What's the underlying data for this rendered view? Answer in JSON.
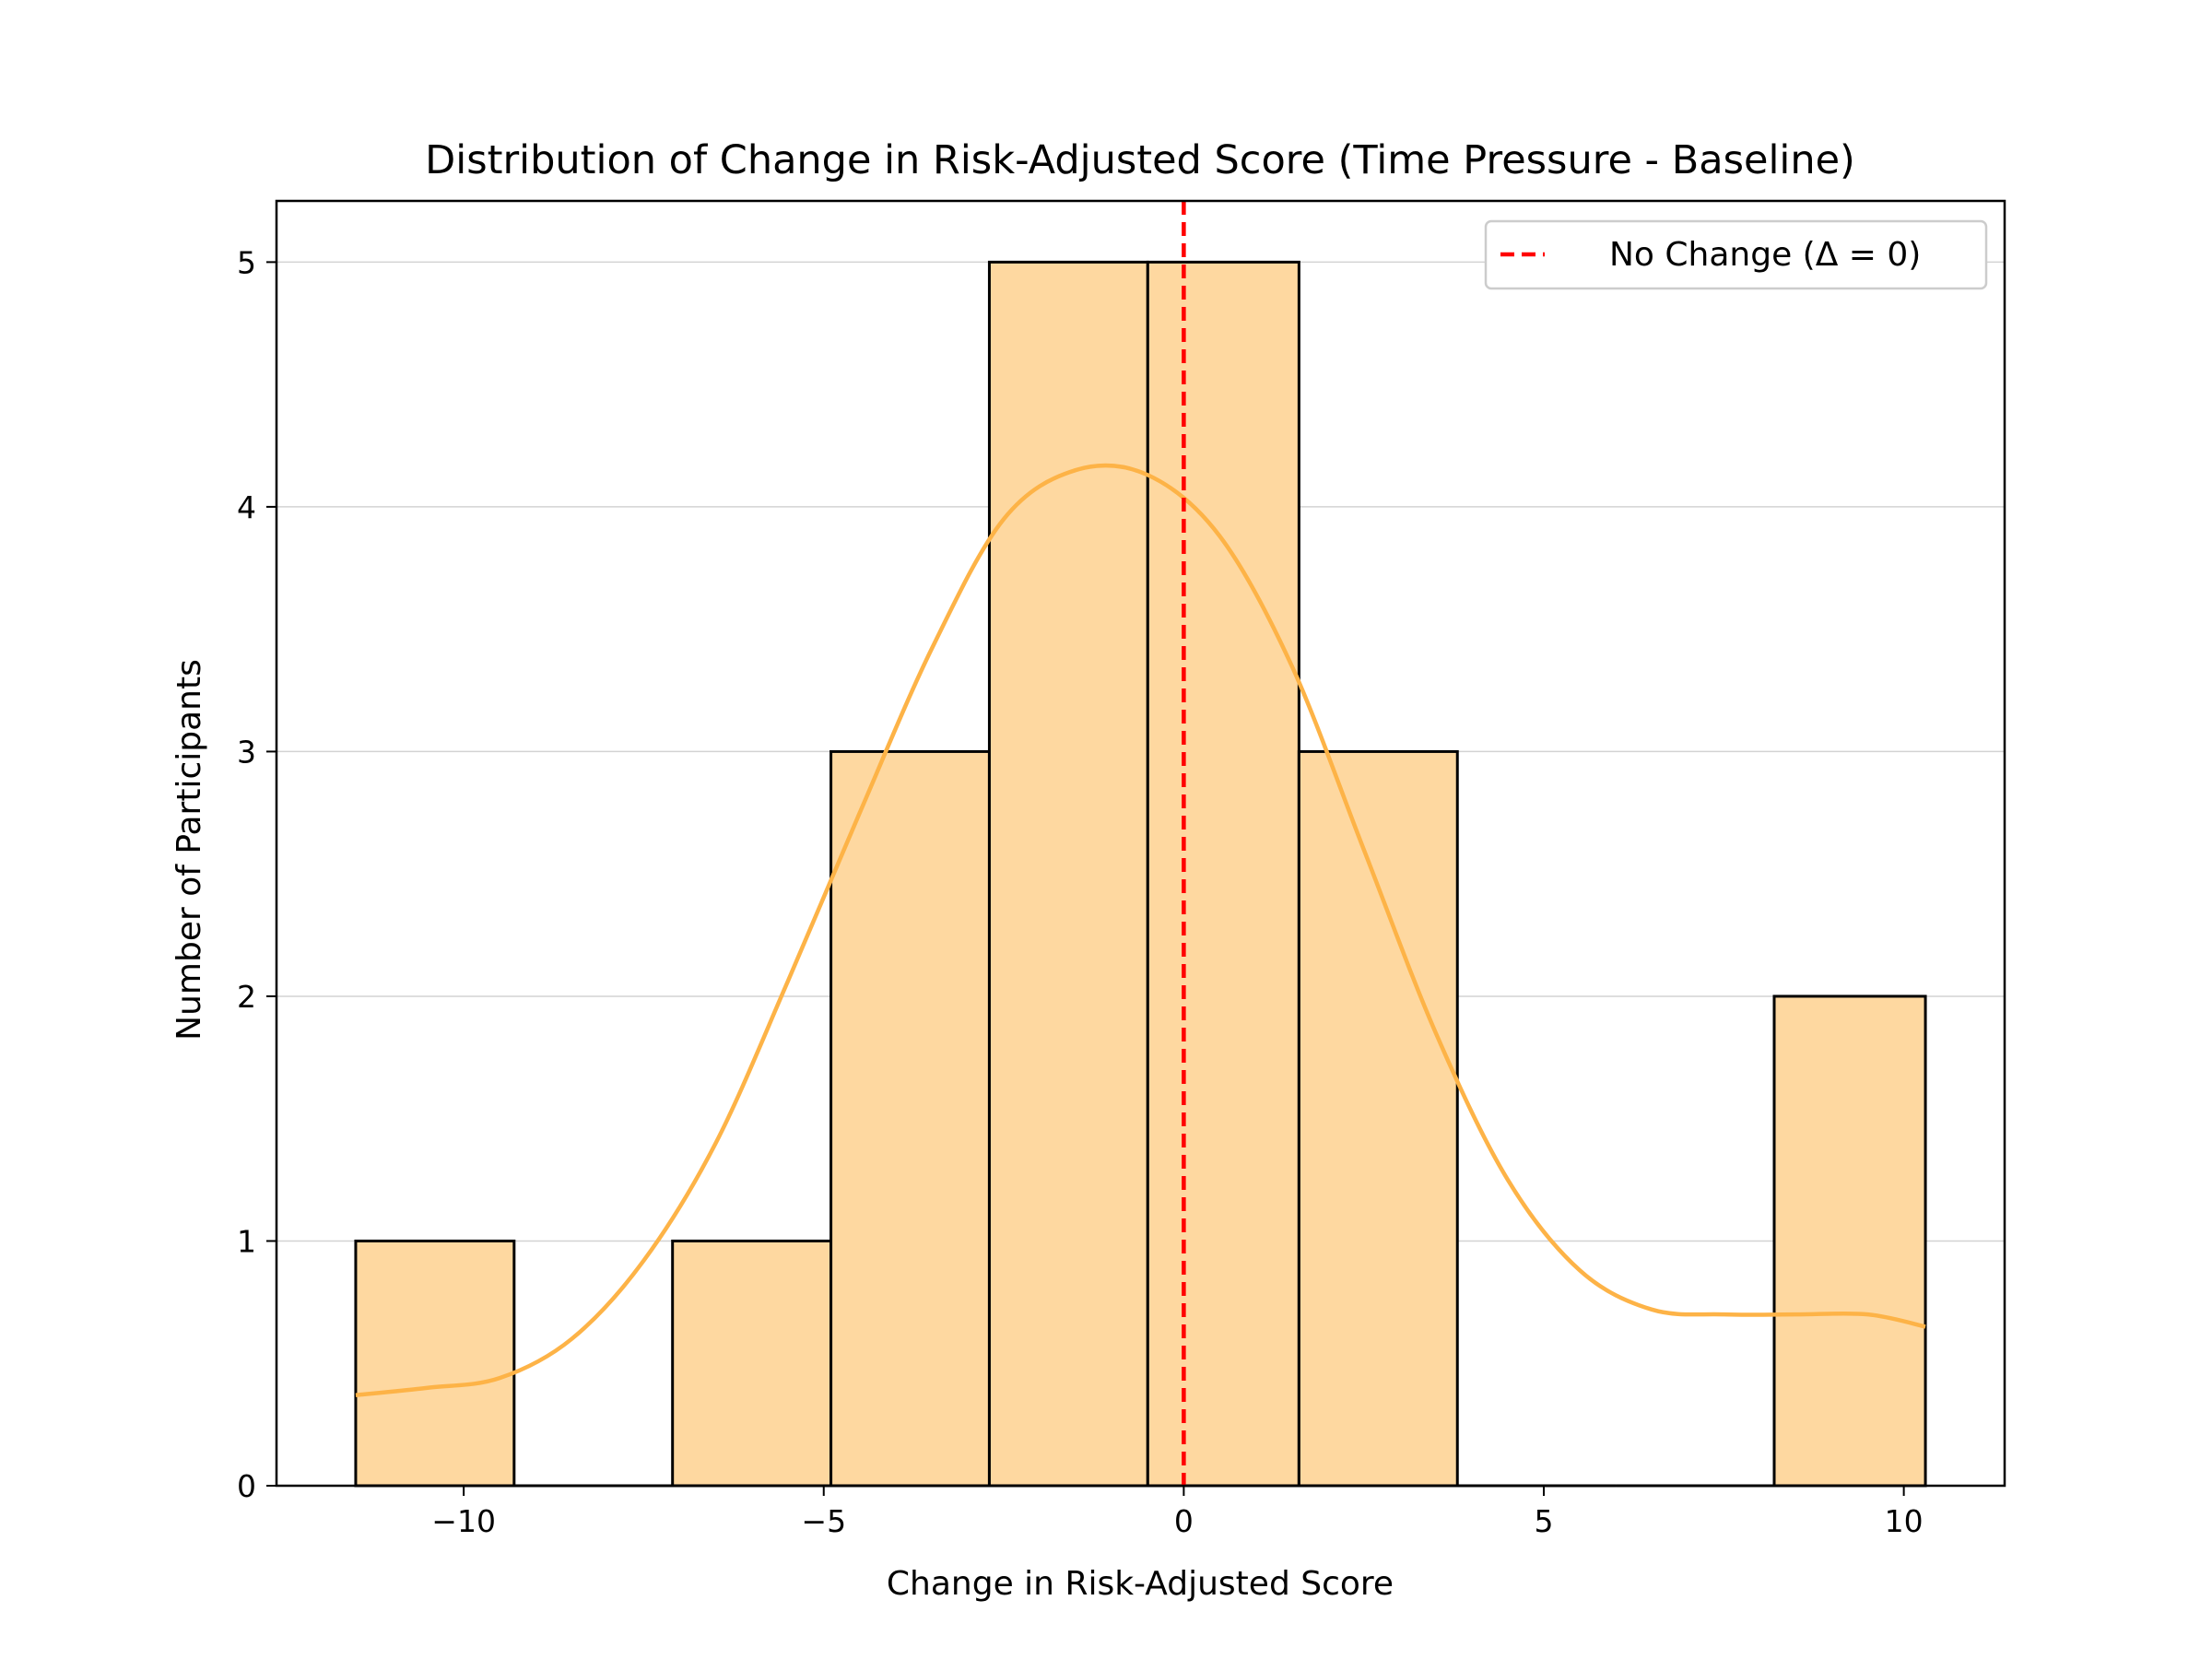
{
  "chart_data": {
    "type": "bar",
    "title": "Distribution of Change in Risk-Adjusted Score (Time Pressure - Baseline)",
    "xlabel": "Change in Risk-Adjusted Score",
    "ylabel": "Number of Participants",
    "xlim": [
      -12.6,
      11.4
    ],
    "ylim": [
      0,
      5.25
    ],
    "xticks": [
      -10,
      -5,
      0,
      5,
      10
    ],
    "xtick_labels": [
      "−10",
      "−5",
      "0",
      "5",
      "10"
    ],
    "yticks": [
      0,
      1,
      2,
      3,
      4,
      5
    ],
    "ytick_labels": [
      "0",
      "1",
      "2",
      "3",
      "4",
      "5"
    ],
    "grid": "horizontal",
    "bins": [
      {
        "x0": -11.5,
        "x1": -9.3,
        "count": 1
      },
      {
        "x0": -9.3,
        "x1": -7.1,
        "count": 0
      },
      {
        "x0": -7.1,
        "x1": -4.9,
        "count": 1
      },
      {
        "x0": -4.9,
        "x1": -2.7,
        "count": 3
      },
      {
        "x0": -2.7,
        "x1": -0.5,
        "count": 5
      },
      {
        "x0": -0.5,
        "x1": 1.6,
        "count": 5
      },
      {
        "x0": 1.6,
        "x1": 3.8,
        "count": 3
      },
      {
        "x0": 3.8,
        "x1": 6.0,
        "count": 0
      },
      {
        "x0": 6.0,
        "x1": 8.2,
        "count": 0
      },
      {
        "x0": 8.2,
        "x1": 10.3,
        "count": 2
      }
    ],
    "bar_color": "#FED8A0",
    "bar_edge_color": "#000000",
    "kde": {
      "color": "#FDB347",
      "x": [
        -11.5,
        -10.5,
        -9.5,
        -8.5,
        -7.5,
        -6.5,
        -5.5,
        -4.5,
        -3.5,
        -2.5,
        -1.5,
        -0.5,
        0.5,
        1.5,
        2.5,
        3.5,
        4.5,
        5.5,
        6.5,
        7.5,
        8.5,
        9.5,
        10.3
      ],
      "y": [
        0.37,
        0.4,
        0.44,
        0.6,
        0.92,
        1.4,
        2.06,
        2.75,
        3.42,
        3.95,
        4.15,
        4.13,
        3.88,
        3.35,
        2.6,
        1.85,
        1.25,
        0.88,
        0.72,
        0.7,
        0.7,
        0.7,
        0.65
      ]
    },
    "reference_line": {
      "x": 0,
      "color": "#FF0000",
      "label": "No Change (Δ = 0)"
    },
    "legend_position": "top-right"
  }
}
